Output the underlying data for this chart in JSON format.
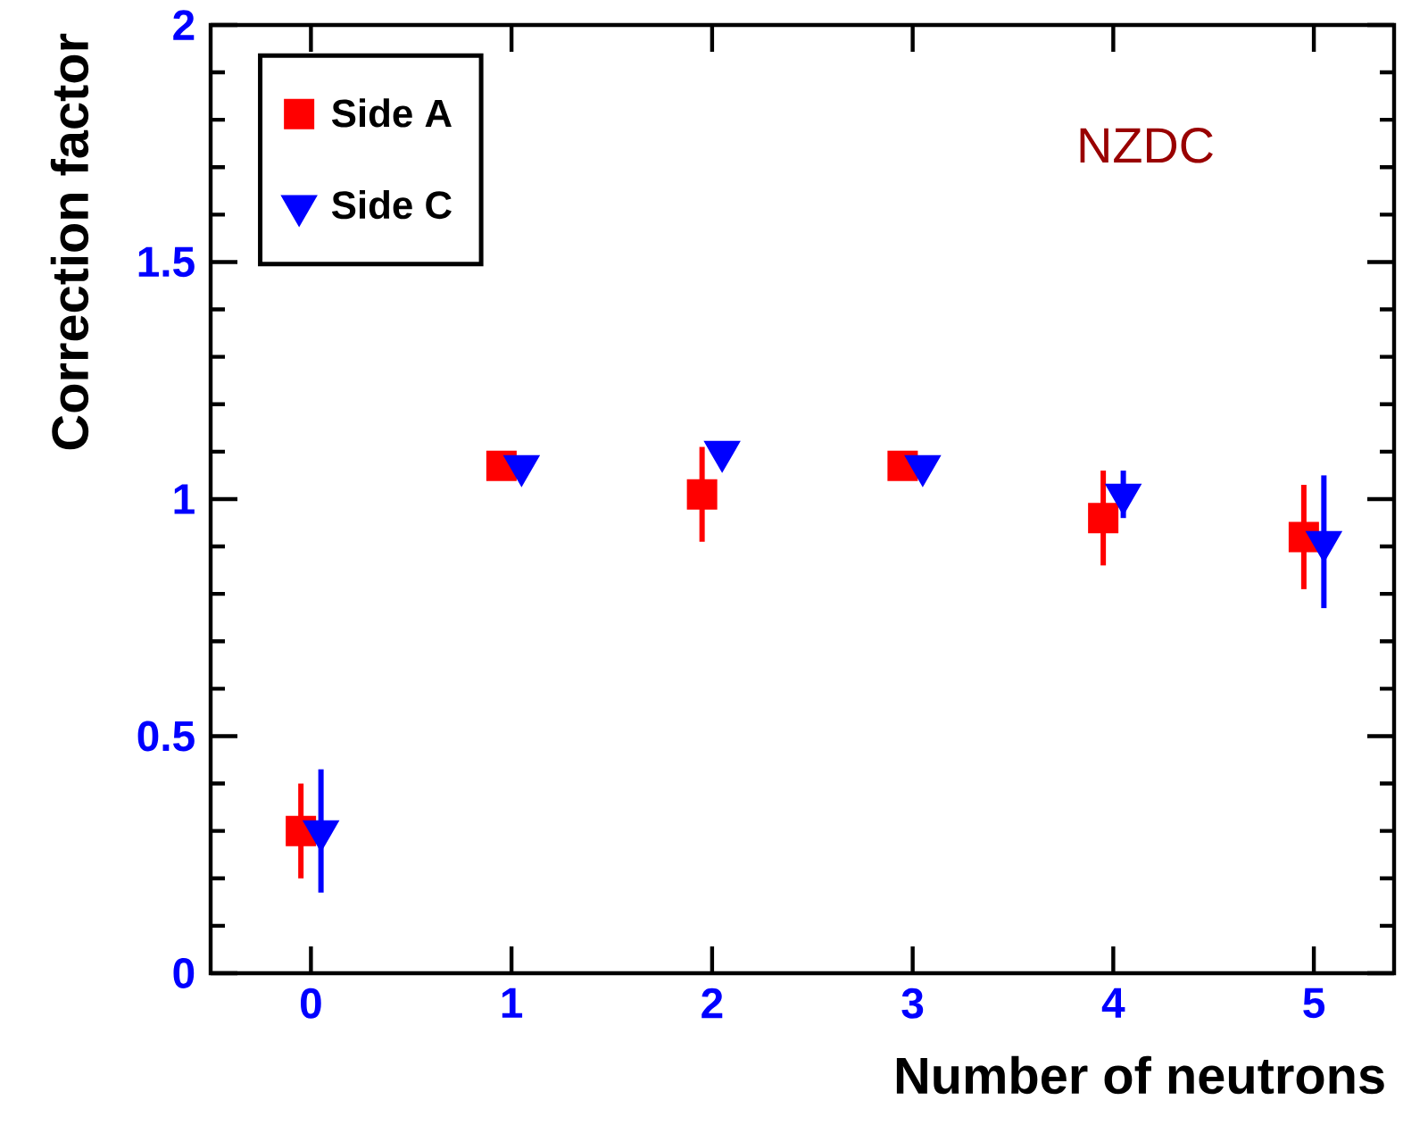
{
  "chart_data": {
    "type": "scatter",
    "xlabel": "Number of neutrons",
    "ylabel": "Correction factor",
    "xlim": [
      -0.5,
      5.4
    ],
    "xticks": [
      0,
      1,
      2,
      3,
      4,
      5
    ],
    "ylim": [
      0,
      2
    ],
    "yticks": [
      0,
      0.5,
      1,
      1.5,
      2
    ],
    "annotations": [
      "NZDC"
    ],
    "legend": "top left",
    "grid": false,
    "series": [
      {
        "name": "Side A",
        "color": "#ff0000",
        "marker": "square",
        "x": [
          -0.05,
          0.95,
          1.95,
          2.95,
          3.95,
          4.95
        ],
        "values": [
          0.3,
          1.07,
          1.01,
          1.07,
          0.96,
          0.92
        ],
        "errors": [
          0.1,
          0.02,
          0.1,
          null,
          0.1,
          0.11
        ]
      },
      {
        "name": "Side C",
        "color": "#0000ff",
        "marker": "triangle",
        "x": [
          0.05,
          1.05,
          2.05,
          3.05,
          4.05,
          5.05
        ],
        "values": [
          0.3,
          1.07,
          1.1,
          1.07,
          1.01,
          0.91
        ],
        "errors": [
          0.13,
          null,
          null,
          null,
          0.05,
          0.14
        ]
      }
    ]
  }
}
